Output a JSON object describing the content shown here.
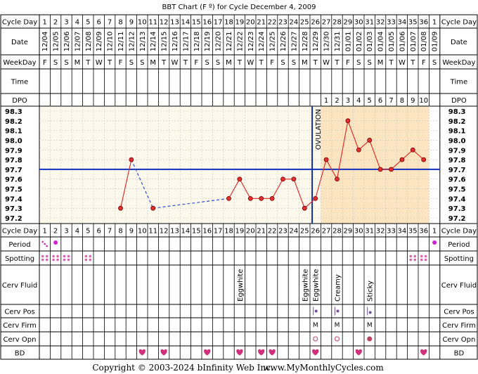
{
  "title": "BBT Chart (F º) for Cycle December 4, 2009",
  "footer": {
    "copyright": "Copyright © 2003-2024 bInfinity Web Inc.",
    "site": "www.MyMonthlyCycles.com"
  },
  "row_labels": {
    "cycle_day": "Cycle Day",
    "date": "Date",
    "weekday": "WeekDay",
    "time": "Time",
    "dpo": "DPO",
    "period": "Period",
    "spotting": "Spotting",
    "cerv_fluid": "Cerv Fluid",
    "cerv_pos": "Cerv Pos",
    "cerv_firm": "Cerv Firm",
    "cerv_opn": "Cerv Opn",
    "bd": "BD"
  },
  "colors": {
    "pre_ovulation_bg": "#fdf8ec",
    "post_ovulation_bg": "#fbe5c0",
    "temp_line": "#e03030",
    "cover_line": "#1030c0",
    "ovulation_line": "#1030a0",
    "period_mark": "#d020d0",
    "spotting_mark": "#e060b0",
    "heart": "#d0307a",
    "pos_mark": "#7050a0",
    "firm_mark": "#a04080",
    "opn_mark": "#c04060"
  },
  "chart_data": {
    "type": "line",
    "title": "BBT Chart (F º) for Cycle December 4, 2009",
    "cycle_days": [
      1,
      2,
      3,
      4,
      5,
      6,
      7,
      8,
      9,
      10,
      11,
      12,
      13,
      14,
      15,
      16,
      17,
      18,
      19,
      20,
      21,
      22,
      23,
      24,
      25,
      26,
      27,
      28,
      29,
      30,
      31,
      32,
      33,
      34,
      35,
      36,
      1
    ],
    "dates": [
      "12/04",
      "12/05",
      "12/06",
      "12/07",
      "12/08",
      "12/09",
      "12/10",
      "12/11",
      "12/12",
      "12/13",
      "12/14",
      "12/15",
      "12/16",
      "12/17",
      "12/18",
      "12/19",
      "12/20",
      "12/21",
      "12/22",
      "12/23",
      "12/24",
      "12/25",
      "12/26",
      "12/27",
      "12/28",
      "12/29",
      "12/30",
      "12/31",
      "01/01",
      "01/02",
      "01/03",
      "01/04",
      "01/05",
      "01/06",
      "01/07",
      "01/08",
      "01/09"
    ],
    "weekdays": [
      "F",
      "S",
      "S",
      "M",
      "T",
      "W",
      "T",
      "F",
      "S",
      "S",
      "M",
      "T",
      "W",
      "T",
      "F",
      "S",
      "S",
      "M",
      "T",
      "W",
      "T",
      "F",
      "S",
      "S",
      "M",
      "T",
      "W",
      "T",
      "F",
      "S",
      "S",
      "M",
      "T",
      "W",
      "T",
      "F",
      "S"
    ],
    "dpo": [
      "",
      "",
      "",
      "",
      "",
      "",
      "",
      "",
      "",
      "",
      "",
      "",
      "",
      "",
      "",
      "",
      "",
      "",
      "",
      "",
      "",
      "",
      "",
      "",
      "",
      "",
      "1",
      "2",
      "3",
      "4",
      "5",
      "6",
      "7",
      "8",
      "9",
      "10",
      ""
    ],
    "y_ticks": [
      "98.3",
      "98.2",
      "98.1",
      "98.0",
      "97.9",
      "97.8",
      "97.7",
      "97.6",
      "97.5",
      "97.4",
      "97.3",
      "97.2"
    ],
    "ylim": [
      97.2,
      98.3
    ],
    "temperatures": [
      null,
      null,
      null,
      null,
      null,
      null,
      null,
      97.3,
      97.8,
      null,
      97.3,
      null,
      null,
      null,
      null,
      null,
      null,
      97.4,
      97.6,
      97.4,
      97.4,
      97.4,
      97.6,
      97.6,
      97.3,
      97.4,
      97.8,
      97.6,
      98.2,
      97.9,
      98.0,
      97.7,
      97.7,
      97.8,
      97.9,
      97.8,
      null
    ],
    "dashed_segments": [
      [
        9,
        11
      ],
      [
        11,
        18
      ]
    ],
    "cover_line": 97.7,
    "ovulation_day": 26,
    "ovulation_label": "OVULATION",
    "period": {
      "light": [
        1
      ],
      "heavy": [
        2,
        37
      ]
    },
    "spotting_days": [
      1,
      2,
      3,
      5,
      35,
      36
    ],
    "cerv_fluid": {
      "19": "Eggwhite",
      "25": "Eggwhite",
      "26": "Eggwhite",
      "28": "Creamy",
      "31": "Sticky"
    },
    "cerv_pos_days": [
      26,
      28,
      31
    ],
    "cerv_firm": {
      "26": "M",
      "28": "M",
      "31": "M"
    },
    "cerv_opn": {
      "26": "open",
      "28": "open",
      "31": "closed"
    },
    "bd_days": [
      10,
      12,
      16,
      19,
      21,
      22,
      26,
      30,
      36
    ]
  }
}
